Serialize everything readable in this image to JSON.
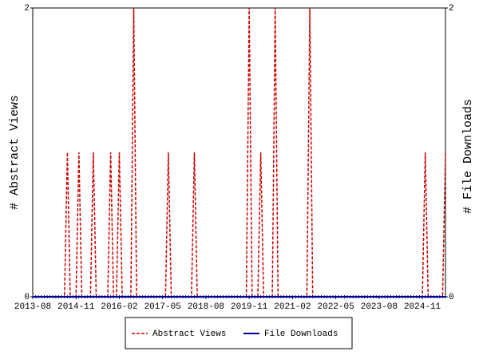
{
  "chart_data": {
    "type": "line",
    "categories": [
      "2013-08",
      null,
      null,
      null,
      null,
      null,
      null,
      null,
      null,
      null,
      null,
      null,
      null,
      null,
      null,
      "2014-11",
      null,
      null,
      null,
      null,
      null,
      null,
      null,
      null,
      null,
      null,
      null,
      null,
      null,
      null,
      "2016-02",
      null,
      null,
      null,
      null,
      null,
      null,
      null,
      null,
      null,
      null,
      null,
      null,
      null,
      null,
      "2017-05",
      null,
      null,
      null,
      null,
      null,
      null,
      null,
      null,
      null,
      null,
      null,
      null,
      null,
      null,
      "2018-08",
      null,
      null,
      null,
      null,
      null,
      null,
      null,
      null,
      null,
      null,
      null,
      null,
      null,
      null,
      "2019-11",
      null,
      null,
      null,
      null,
      null,
      null,
      null,
      null,
      null,
      null,
      null,
      null,
      null,
      null,
      "2021-02",
      null,
      null,
      null,
      null,
      null,
      null,
      null,
      null,
      null,
      null,
      null,
      null,
      null,
      null,
      "2022-05",
      null,
      null,
      null,
      null,
      null,
      null,
      null,
      null,
      null,
      null,
      null,
      null,
      null,
      null,
      "2023-08",
      null,
      null,
      null,
      null,
      null,
      null,
      null,
      null,
      null,
      null,
      null,
      null,
      null,
      null,
      "2024-11",
      null,
      null,
      null,
      null,
      null,
      null,
      null,
      null
    ],
    "series": [
      {
        "name": "Abstract Views",
        "color": "#cc0000",
        "values": [
          0,
          0,
          0,
          0,
          0,
          0,
          0,
          0,
          0,
          0,
          0,
          0,
          1,
          0,
          0,
          0,
          1,
          0,
          0,
          0,
          0,
          1,
          0,
          0,
          0,
          0,
          0,
          1,
          0,
          0,
          1,
          0,
          0,
          0,
          0,
          2,
          0,
          0,
          0,
          0,
          0,
          0,
          0,
          0,
          0,
          0,
          0,
          1,
          0,
          0,
          0,
          0,
          0,
          0,
          0,
          0,
          1,
          0,
          0,
          0,
          0,
          0,
          0,
          0,
          0,
          0,
          0,
          0,
          0,
          0,
          0,
          0,
          0,
          0,
          0,
          2,
          0,
          0,
          0,
          1,
          0,
          0,
          0,
          0,
          2,
          0,
          0,
          0,
          0,
          0,
          0,
          0,
          0,
          0,
          0,
          0,
          2,
          0,
          0,
          0,
          0,
          0,
          0,
          0,
          0,
          0,
          0,
          0,
          0,
          0,
          0,
          0,
          0,
          0,
          0,
          0,
          0,
          0,
          0,
          0,
          0,
          0,
          0,
          0,
          0,
          0,
          0,
          0,
          0,
          0,
          0,
          0,
          0,
          0,
          0,
          0,
          1,
          0,
          0,
          0,
          0,
          0,
          0,
          1
        ]
      },
      {
        "name": "File Downloads",
        "color": "#000099",
        "axis": "y2",
        "values": [
          0,
          0,
          0,
          0,
          0,
          0,
          0,
          0,
          0,
          0,
          0,
          0,
          0,
          0,
          0,
          0,
          0,
          0,
          0,
          0,
          0,
          0,
          0,
          0,
          0,
          0,
          0,
          0,
          0,
          0,
          0,
          0,
          0,
          0,
          0,
          0,
          0,
          0,
          0,
          0,
          0,
          0,
          0,
          0,
          0,
          0,
          0,
          0,
          0,
          0,
          0,
          0,
          0,
          0,
          0,
          0,
          0,
          0,
          0,
          0,
          0,
          0,
          0,
          0,
          0,
          0,
          0,
          0,
          0,
          0,
          0,
          0,
          0,
          0,
          0,
          0,
          0,
          0,
          0,
          0,
          0,
          0,
          0,
          0,
          0,
          0,
          0,
          0,
          0,
          0,
          0,
          0,
          0,
          0,
          0,
          0,
          0,
          0,
          0,
          0,
          0,
          0,
          0,
          0,
          0,
          0,
          0,
          0,
          0,
          0,
          0,
          0,
          0,
          0,
          0,
          0,
          0,
          0,
          0,
          0,
          0,
          0,
          0,
          0,
          0,
          0,
          0,
          0,
          0,
          0,
          0,
          0,
          0,
          0,
          0,
          0,
          0,
          0,
          0,
          0,
          0,
          0,
          0,
          0
        ]
      }
    ],
    "y_label": "# Abstract Views",
    "y2_label": "# File Downloads",
    "ylim": [
      0,
      2
    ],
    "yticks": [
      0,
      2
    ],
    "y2lim": [
      0,
      2
    ],
    "y2ticks": [
      0,
      2
    ],
    "legend": "bottom"
  }
}
